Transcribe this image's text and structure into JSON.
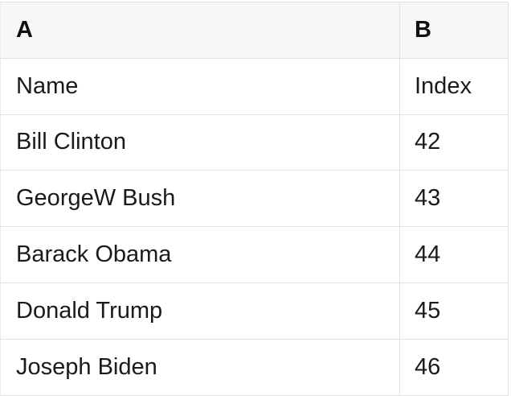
{
  "table": {
    "column_headers": [
      {
        "label": "A"
      },
      {
        "label": "B"
      }
    ],
    "rows": [
      {
        "a": "Name",
        "b": "Index"
      },
      {
        "a": "Bill Clinton",
        "b": "42"
      },
      {
        "a": "GeorgeW Bush",
        "b": "43"
      },
      {
        "a": "Barack Obama",
        "b": "44"
      },
      {
        "a": "Donald Trump",
        "b": "45"
      },
      {
        "a": "Joseph Biden",
        "b": "46"
      }
    ],
    "colors": {
      "header_bg": "#f7f7f7",
      "border": "#e0e0e0",
      "text": "#1a1a1a"
    }
  }
}
